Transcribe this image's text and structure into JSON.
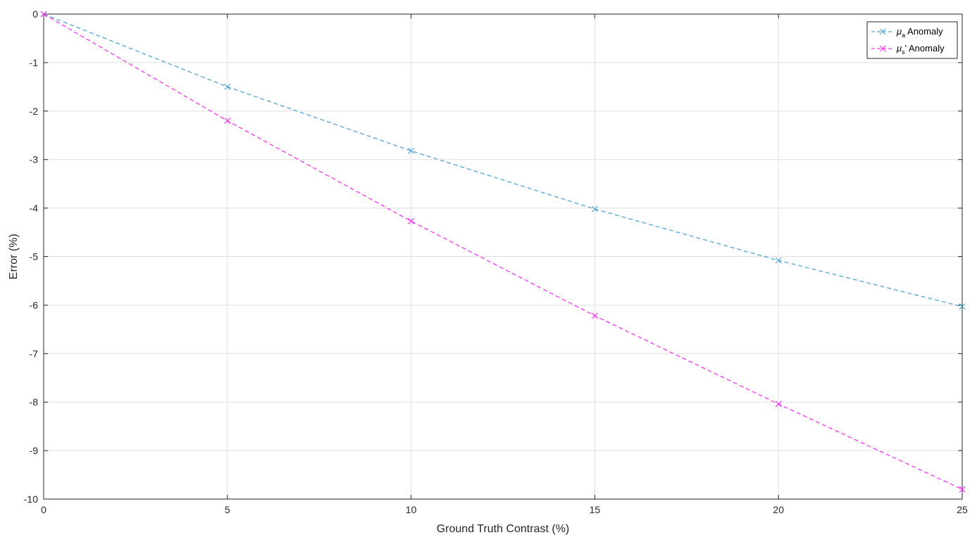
{
  "chart_data": {
    "type": "line",
    "xlabel": "Ground Truth Contrast (%)",
    "ylabel": "Error (%)",
    "xlim": [
      0,
      25
    ],
    "ylim": [
      -10,
      0
    ],
    "xticks": [
      0,
      5,
      10,
      15,
      20,
      25
    ],
    "yticks": [
      0,
      -1,
      -2,
      -3,
      -4,
      -5,
      -6,
      -7,
      -8,
      -9,
      -10
    ],
    "grid": true,
    "legend_position": "top-right",
    "x": [
      0,
      5,
      10,
      15,
      20,
      25
    ],
    "series": [
      {
        "name_symbol": "μ",
        "name_sub": "a",
        "name_suffix": " Anomaly",
        "color": "#4da6d8",
        "marker": "x",
        "line_style": "dashed",
        "values": [
          0,
          -1.5,
          -2.82,
          -4.02,
          -5.08,
          -6.03
        ]
      },
      {
        "name_symbol": "μ",
        "name_sub": "s",
        "name_suffix": "' Anomaly",
        "color": "#ff33ff",
        "marker": "x",
        "line_style": "dashed",
        "values": [
          0,
          -2.2,
          -4.27,
          -6.22,
          -8.04,
          -9.8
        ]
      }
    ]
  }
}
